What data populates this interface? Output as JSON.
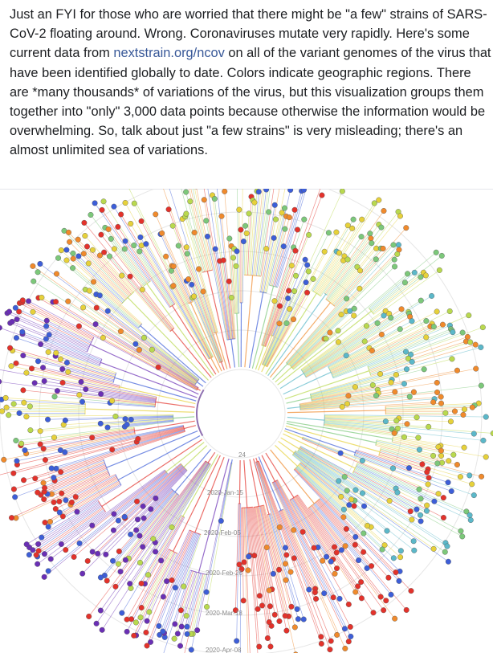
{
  "post": {
    "text_before": "Just an FYI for those who are worried that there might be \"a few\" strains of SARS-CoV-2 floating around. Wrong. Coronaviruses mutate very rapidly. Here's some current data from ",
    "link": "nextstrain.org/ncov",
    "text_after": " on all of the variant genomes of the virus that have been identified globally to date. Colors indicate geographic regions. There are *many thousands* of variations of the virus, but this visualization groups them together into \"only\" 3,000 data points because otherwise the information would be overwhelming. So, talk about just \"a few strains\" is very misleading; there's an almost unlimited sea of variations."
  },
  "image": {
    "date_labels": [
      "24",
      "2020-Jan-15",
      "2020-Feb-05",
      "2020-Feb-26",
      "2020-Mar-18",
      "2020-Apr-08"
    ]
  }
}
